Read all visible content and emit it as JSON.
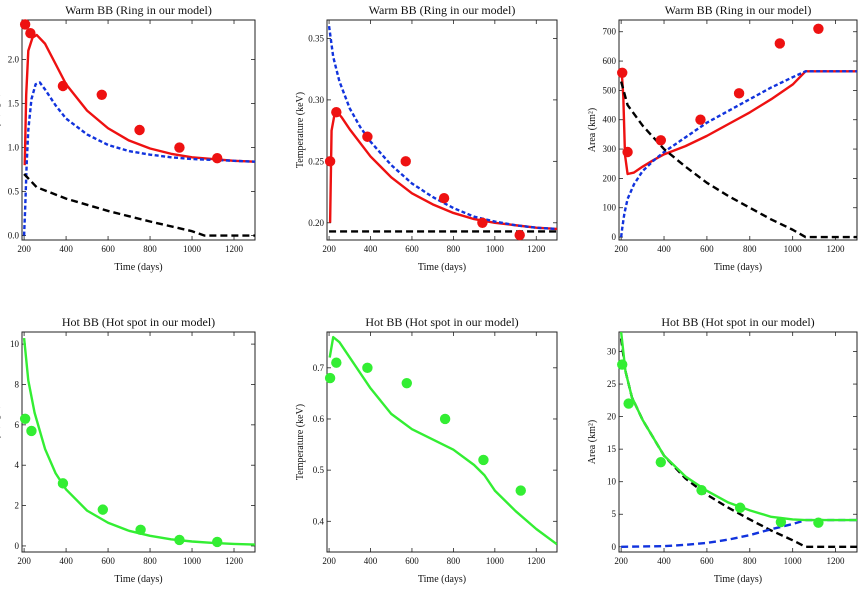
{
  "figure": {
    "colors": {
      "data_warm": "#ee1111",
      "data_hot": "#33ee33",
      "line_red": "#ee1111",
      "line_blue": "#1133dd",
      "line_black": "#000000",
      "line_green": "#33ee33"
    }
  },
  "chart_data": [
    {
      "id": "warm-lum",
      "type": "line",
      "title": "Warm BB (Ring in our model)",
      "xlabel": "Time (days)",
      "ylabel": "Luminosity (erg/s)",
      "xlim": [
        190,
        1300
      ],
      "ylim": [
        -0.05,
        2.45
      ],
      "xticks": [
        200,
        400,
        600,
        800,
        1000,
        1200
      ],
      "xtick_labels": [
        "200",
        "400",
        "600",
        "800",
        "1000",
        "1200"
      ],
      "yticks": [
        0.0,
        0.5,
        1.0,
        1.5,
        2.0
      ],
      "ytick_labels": [
        "0.0",
        "0.5",
        "1.0",
        "1.5",
        "2.0"
      ],
      "points": {
        "color": "#ee1111",
        "x": [
          205,
          230,
          385,
          570,
          750,
          940,
          1120
        ],
        "y": [
          2.4,
          2.3,
          1.7,
          1.6,
          1.2,
          1.0,
          0.88
        ]
      },
      "series": [
        {
          "name": "red",
          "color": "#ee1111",
          "style": "solid",
          "x": [
            203,
            210,
            220,
            240,
            260,
            300,
            350,
            400,
            500,
            600,
            700,
            800,
            900,
            1000,
            1100,
            1200,
            1300
          ],
          "y": [
            0.8,
            1.6,
            2.1,
            2.25,
            2.28,
            2.18,
            1.95,
            1.72,
            1.42,
            1.22,
            1.08,
            0.99,
            0.93,
            0.89,
            0.87,
            0.85,
            0.84
          ]
        },
        {
          "name": "blue",
          "color": "#1133dd",
          "style": "dotted",
          "x": [
            200,
            205,
            212,
            220,
            235,
            255,
            275,
            300,
            350,
            400,
            500,
            600,
            700,
            800,
            900,
            1000,
            1100,
            1200,
            1300
          ],
          "y": [
            0.0,
            0.3,
            0.8,
            1.2,
            1.55,
            1.72,
            1.74,
            1.66,
            1.48,
            1.33,
            1.15,
            1.03,
            0.96,
            0.92,
            0.89,
            0.87,
            0.86,
            0.85,
            0.84
          ]
        },
        {
          "name": "black",
          "color": "#000000",
          "style": "dashed",
          "x": [
            200,
            260,
            400,
            600,
            800,
            1000,
            1060,
            1300
          ],
          "y": [
            0.7,
            0.55,
            0.42,
            0.28,
            0.16,
            0.05,
            0.0,
            0.0
          ]
        }
      ]
    },
    {
      "id": "warm-temp",
      "type": "line",
      "title": "Warm BB (Ring in our model)",
      "xlabel": "Time (days)",
      "ylabel": "Temperature (keV)",
      "xlim": [
        190,
        1300
      ],
      "ylim": [
        0.186,
        0.365
      ],
      "xticks": [
        200,
        400,
        600,
        800,
        1000,
        1200
      ],
      "xtick_labels": [
        "200",
        "400",
        "600",
        "800",
        "1000",
        "1200"
      ],
      "yticks": [
        0.2,
        0.25,
        0.3,
        0.35
      ],
      "ytick_labels": [
        "0.20",
        "0.25",
        "0.30",
        "0.35"
      ],
      "points": {
        "color": "#ee1111",
        "x": [
          205,
          235,
          385,
          570,
          755,
          940,
          1120
        ],
        "y": [
          0.25,
          0.29,
          0.27,
          0.25,
          0.22,
          0.2,
          0.19
        ]
      },
      "series": [
        {
          "name": "red",
          "color": "#ee1111",
          "style": "solid",
          "x": [
            205,
            212,
            225,
            240,
            260,
            300,
            400,
            500,
            600,
            700,
            800,
            900,
            1000,
            1100,
            1200,
            1300
          ],
          "y": [
            0.2,
            0.275,
            0.287,
            0.29,
            0.286,
            0.276,
            0.254,
            0.237,
            0.224,
            0.215,
            0.208,
            0.203,
            0.2,
            0.198,
            0.196,
            0.195
          ]
        },
        {
          "name": "blue",
          "color": "#1133dd",
          "style": "dotted",
          "x": [
            200,
            220,
            250,
            300,
            350,
            400,
            500,
            600,
            700,
            800,
            900,
            1000,
            1100,
            1200,
            1300
          ],
          "y": [
            0.36,
            0.335,
            0.315,
            0.293,
            0.278,
            0.266,
            0.247,
            0.232,
            0.221,
            0.212,
            0.205,
            0.201,
            0.198,
            0.196,
            0.195
          ]
        },
        {
          "name": "black",
          "color": "#000000",
          "style": "dashed",
          "x": [
            200,
            1300
          ],
          "y": [
            0.193,
            0.193
          ]
        }
      ]
    },
    {
      "id": "warm-area",
      "type": "line",
      "title": "Warm BB (Ring in our model)",
      "xlabel": "Time (days)",
      "ylabel": "Area (km²)",
      "xlim": [
        190,
        1300
      ],
      "ylim": [
        -10,
        740
      ],
      "xticks": [
        200,
        400,
        600,
        800,
        1000,
        1200
      ],
      "xtick_labels": [
        "200",
        "400",
        "600",
        "800",
        "1000",
        "1200"
      ],
      "yticks": [
        0,
        100,
        200,
        300,
        400,
        500,
        600,
        700
      ],
      "ytick_labels": [
        "0",
        "100",
        "200",
        "300",
        "400",
        "500",
        "600",
        "700"
      ],
      "points": {
        "color": "#ee1111",
        "x": [
          205,
          230,
          385,
          570,
          750,
          940,
          1120
        ],
        "y": [
          560,
          290,
          330,
          400,
          490,
          660,
          710
        ]
      },
      "series": [
        {
          "name": "red",
          "color": "#ee1111",
          "style": "solid",
          "x": [
            203,
            210,
            218,
            230,
            260,
            300,
            350,
            400,
            500,
            600,
            700,
            800,
            900,
            1000,
            1060,
            1300
          ],
          "y": [
            560,
            480,
            280,
            215,
            220,
            240,
            262,
            282,
            310,
            345,
            385,
            425,
            470,
            520,
            565,
            565
          ]
        },
        {
          "name": "blue",
          "color": "#1133dd",
          "style": "dotted",
          "x": [
            200,
            205,
            215,
            230,
            260,
            300,
            350,
            400,
            500,
            600,
            700,
            800,
            900,
            1000,
            1060,
            1300
          ],
          "y": [
            0,
            30,
            80,
            130,
            180,
            225,
            260,
            290,
            340,
            390,
            430,
            470,
            510,
            545,
            565,
            565
          ]
        },
        {
          "name": "black",
          "color": "#000000",
          "style": "dashed",
          "x": [
            200,
            230,
            300,
            400,
            500,
            600,
            700,
            800,
            900,
            1000,
            1060,
            1300
          ],
          "y": [
            530,
            450,
            380,
            300,
            240,
            185,
            140,
            100,
            60,
            25,
            0,
            0
          ]
        }
      ]
    },
    {
      "id": "hot-lum",
      "type": "line",
      "title": "Hot BB (Hot spot in our model)",
      "xlabel": "Time (days)",
      "ylabel": "Luminosity (erg/s)",
      "xlim": [
        190,
        1300
      ],
      "ylim": [
        -0.3,
        10.6
      ],
      "xticks": [
        200,
        400,
        600,
        800,
        1000,
        1200
      ],
      "xtick_labels": [
        "200",
        "400",
        "600",
        "800",
        "1000",
        "1200"
      ],
      "yticks": [
        0,
        2,
        4,
        6,
        8,
        10
      ],
      "ytick_labels": [
        "0",
        "2",
        "4",
        "6",
        "8",
        "10"
      ],
      "points": {
        "color": "#33ee33",
        "x": [
          205,
          235,
          385,
          575,
          755,
          940,
          1120
        ],
        "y": [
          6.3,
          5.7,
          3.1,
          1.8,
          0.8,
          0.3,
          0.2
        ]
      },
      "series": [
        {
          "name": "green",
          "color": "#33ee33",
          "style": "solid",
          "x": [
            200,
            220,
            250,
            300,
            350,
            400,
            500,
            600,
            700,
            800,
            900,
            1000,
            1100,
            1200,
            1300
          ],
          "y": [
            10.3,
            8.2,
            6.6,
            4.8,
            3.6,
            2.8,
            1.75,
            1.15,
            0.75,
            0.5,
            0.33,
            0.22,
            0.15,
            0.1,
            0.07
          ]
        }
      ]
    },
    {
      "id": "hot-temp",
      "type": "line",
      "title": "Hot BB (Hot spot in our model)",
      "xlabel": "Time (days)",
      "ylabel": "Temperature (keV)",
      "xlim": [
        190,
        1300
      ],
      "ylim": [
        0.34,
        0.77
      ],
      "xticks": [
        200,
        400,
        600,
        800,
        1000,
        1200
      ],
      "xtick_labels": [
        "200",
        "400",
        "600",
        "800",
        "1000",
        "1200"
      ],
      "yticks": [
        0.4,
        0.5,
        0.6,
        0.7
      ],
      "ytick_labels": [
        "0.4",
        "0.5",
        "0.6",
        "0.7"
      ],
      "points": {
        "color": "#33ee33",
        "x": [
          205,
          235,
          385,
          575,
          760,
          945,
          1125
        ],
        "y": [
          0.68,
          0.71,
          0.7,
          0.67,
          0.6,
          0.52,
          0.46
        ]
      },
      "series": [
        {
          "name": "green",
          "color": "#33ee33",
          "style": "solid",
          "x": [
            203,
            220,
            250,
            300,
            400,
            500,
            600,
            700,
            800,
            900,
            950,
            1000,
            1100,
            1200,
            1300
          ],
          "y": [
            0.72,
            0.76,
            0.75,
            0.72,
            0.66,
            0.61,
            0.58,
            0.56,
            0.54,
            0.51,
            0.49,
            0.46,
            0.42,
            0.385,
            0.355
          ]
        }
      ]
    },
    {
      "id": "hot-area",
      "type": "line",
      "title": "Hot BB (Hot spot in our model)",
      "xlabel": "Time (days)",
      "ylabel": "Area (km²)",
      "xlim": [
        190,
        1300
      ],
      "ylim": [
        -0.8,
        33
      ],
      "xticks": [
        200,
        400,
        600,
        800,
        1000,
        1200
      ],
      "xtick_labels": [
        "200",
        "400",
        "600",
        "800",
        "1000",
        "1200"
      ],
      "yticks": [
        0,
        5,
        10,
        15,
        20,
        25,
        30
      ],
      "ytick_labels": [
        "0",
        "5",
        "10",
        "15",
        "20",
        "25",
        "30"
      ],
      "points": {
        "color": "#33ee33",
        "x": [
          205,
          235,
          385,
          575,
          755,
          945,
          1120
        ],
        "y": [
          28,
          22,
          13,
          8.7,
          6,
          3.8,
          3.7
        ]
      },
      "series": [
        {
          "name": "black",
          "color": "#000000",
          "style": "dashed",
          "x": [
            200,
            220,
            250,
            300,
            400,
            500,
            600,
            700,
            800,
            900,
            1000,
            1060,
            1300
          ],
          "y": [
            32,
            27,
            23,
            19.5,
            14,
            10.5,
            8,
            6,
            4.2,
            2.5,
            1,
            0,
            0
          ]
        },
        {
          "name": "blue",
          "color": "#1133dd",
          "style": "dashed",
          "x": [
            200,
            400,
            500,
            600,
            700,
            800,
            900,
            1000,
            1060,
            1300
          ],
          "y": [
            0,
            0.1,
            0.3,
            0.6,
            1.1,
            1.8,
            2.7,
            3.5,
            4.1,
            4.1
          ]
        },
        {
          "name": "green",
          "color": "#33ee33",
          "style": "solid",
          "x": [
            200,
            220,
            250,
            300,
            400,
            500,
            600,
            700,
            800,
            900,
            1000,
            1060,
            1300
          ],
          "y": [
            33,
            27,
            23,
            19.5,
            14,
            10.8,
            8.6,
            6.8,
            5.6,
            4.6,
            4.2,
            4.1,
            4.1
          ]
        }
      ]
    }
  ]
}
